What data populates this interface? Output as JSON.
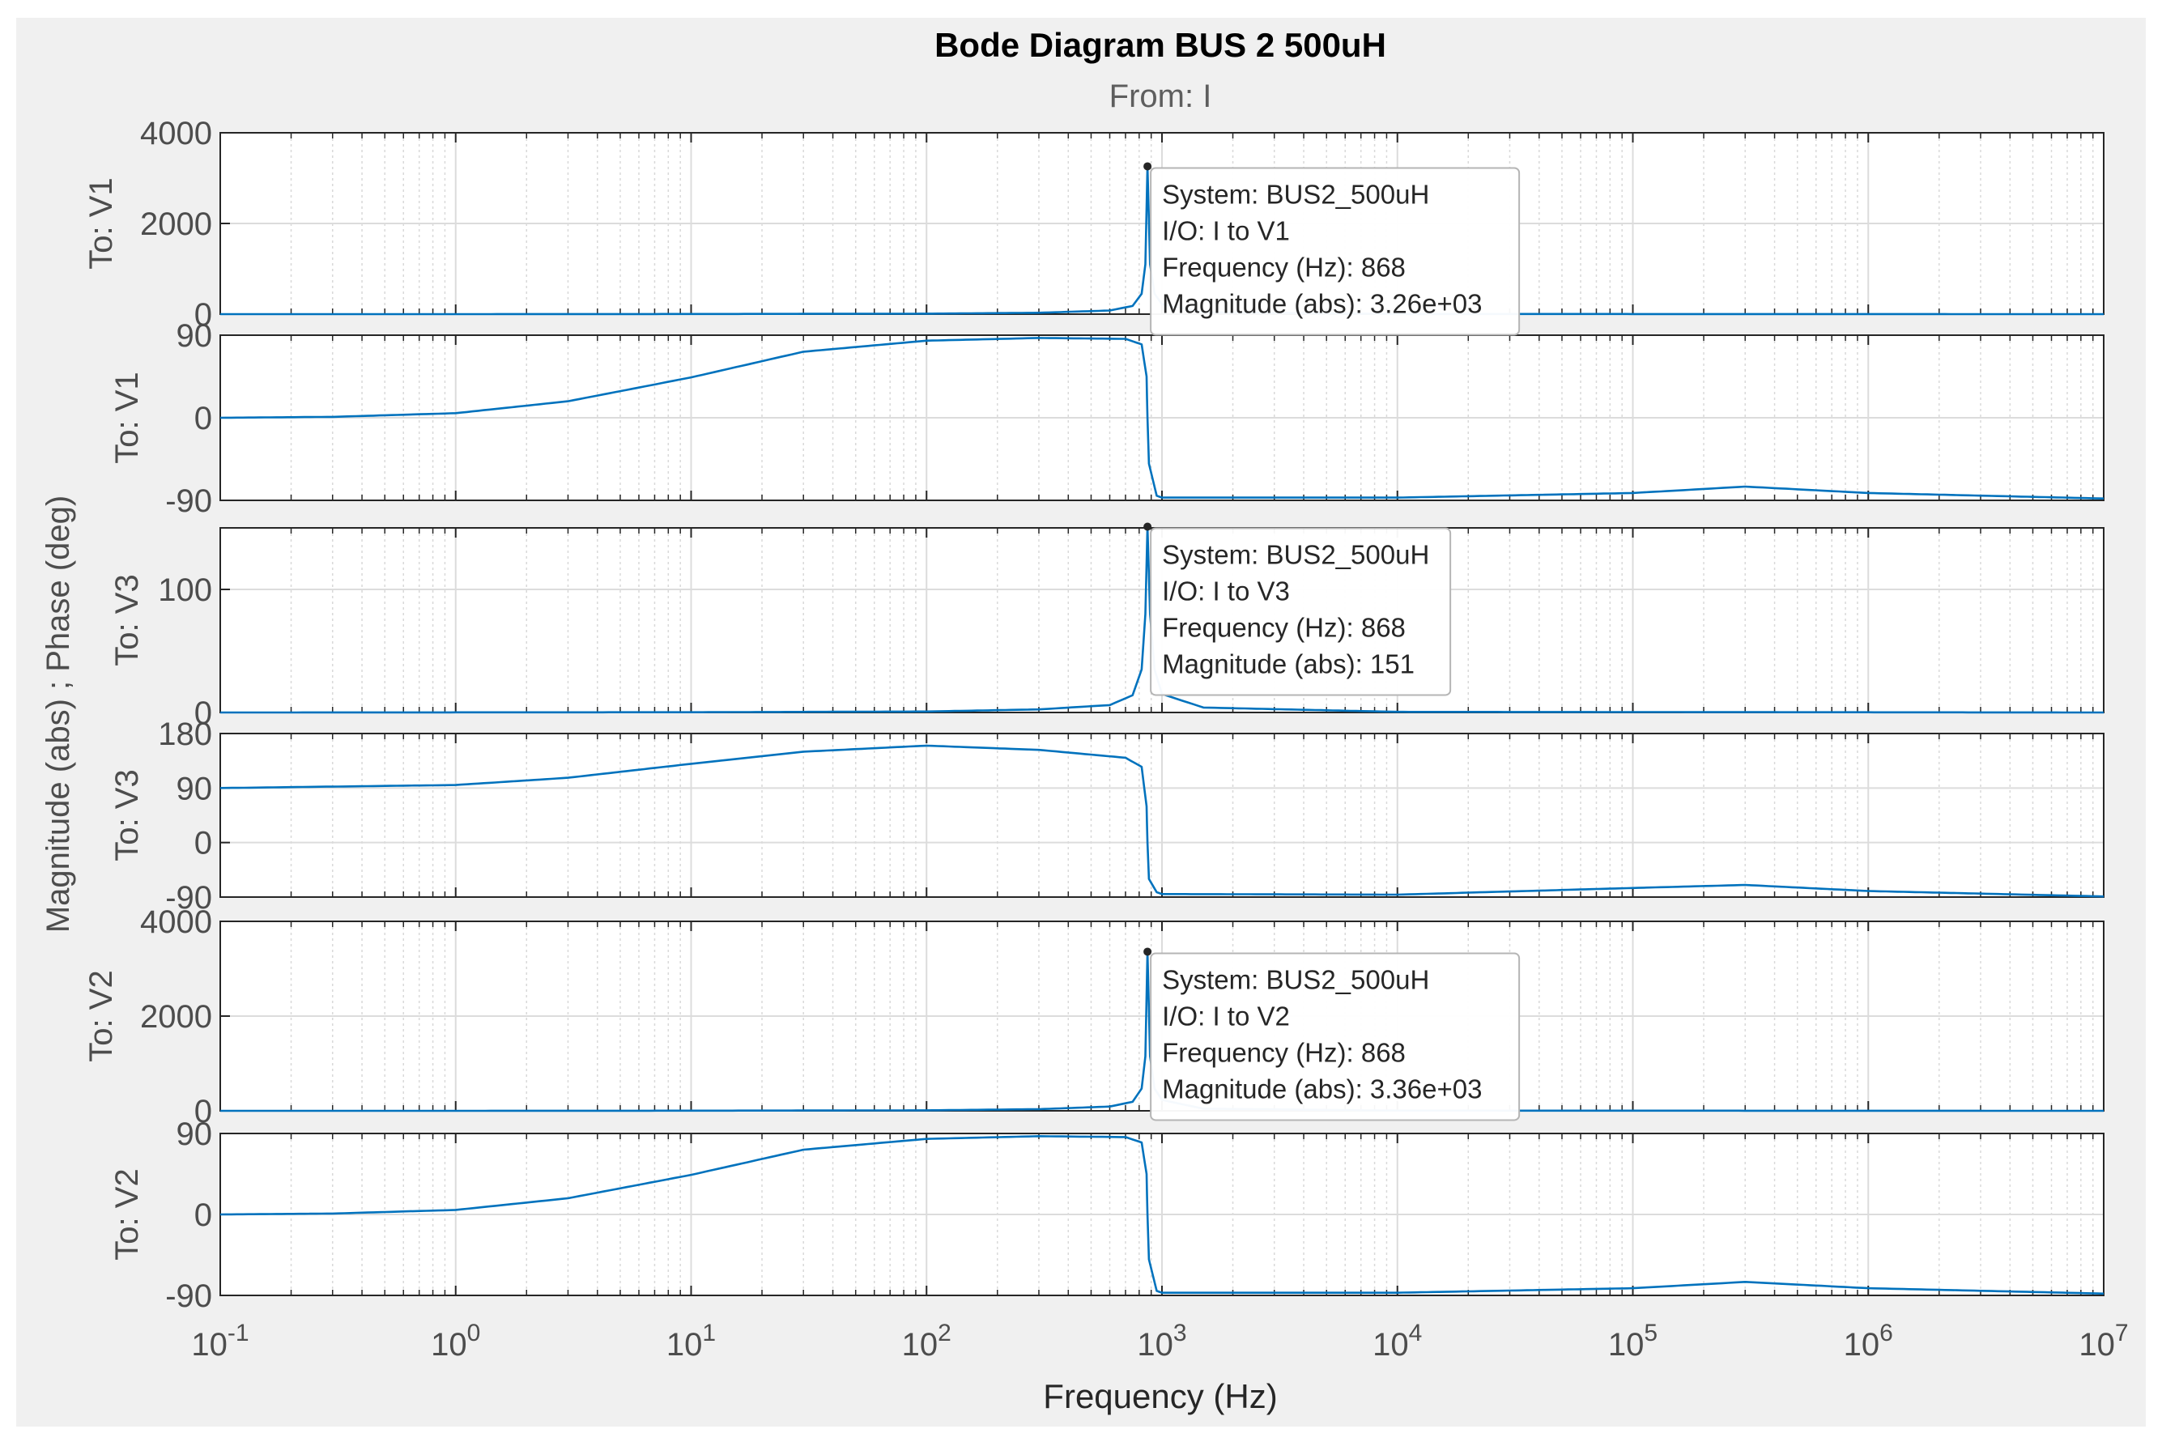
{
  "chart_data": {
    "type": "line",
    "title": "Bode Diagram BUS 2 500uH",
    "subtitle": "From: I",
    "xlabel": "Frequency  (Hz)",
    "ylabel": "Magnitude (abs) ; Phase (deg)",
    "xscale": "log",
    "xlim": [
      0.1,
      10000000
    ],
    "x_ticks": [
      {
        "base": "10",
        "exp": "-1"
      },
      {
        "base": "10",
        "exp": "0"
      },
      {
        "base": "10",
        "exp": "1"
      },
      {
        "base": "10",
        "exp": "2"
      },
      {
        "base": "10",
        "exp": "3"
      },
      {
        "base": "10",
        "exp": "4"
      },
      {
        "base": "10",
        "exp": "5"
      },
      {
        "base": "10",
        "exp": "6"
      },
      {
        "base": "10",
        "exp": "7"
      }
    ],
    "grid": true,
    "line_color": "#0072bd",
    "panels": [
      {
        "kind": "magnitude",
        "ylabel": "To: V1",
        "ylim": [
          0,
          4000
        ],
        "yticks": [
          "4000",
          "2000",
          "0"
        ],
        "series": {
          "x": [
            0.1,
            1,
            10,
            100,
            300,
            600,
            750,
            820,
            850,
            868,
            890,
            930,
            1000,
            1500,
            10000,
            10000000
          ],
          "y": [
            0,
            0.5,
            3,
            10,
            30,
            80,
            180,
            450,
            1100,
            3260,
            1100,
            450,
            220,
            40,
            4,
            0
          ]
        }
      },
      {
        "kind": "phase",
        "ylabel": "To: V1",
        "ylim": [
          -90,
          90
        ],
        "yticks": [
          "90",
          "0",
          "-90"
        ],
        "series": {
          "x": [
            0.1,
            0.3,
            1,
            3,
            10,
            30,
            100,
            300,
            700,
            820,
            860,
            868,
            880,
            950,
            1000,
            10000,
            100000,
            300000,
            1000000,
            10000000
          ],
          "y": [
            0,
            1,
            5,
            18,
            44,
            72,
            84,
            87,
            86,
            80,
            45,
            0,
            -50,
            -85,
            -87,
            -87,
            -82,
            -75,
            -82,
            -88
          ]
        }
      },
      {
        "kind": "magnitude",
        "ylabel": "To: V3",
        "ylim": [
          0,
          150
        ],
        "yticks": [
          "100",
          "0"
        ],
        "series": {
          "x": [
            0.1,
            10,
            100,
            300,
            600,
            750,
            820,
            850,
            868,
            890,
            930,
            1000,
            1500,
            10000,
            10000000
          ],
          "y": [
            0,
            0.2,
            0.8,
            2.5,
            6,
            14,
            35,
            80,
            151,
            80,
            35,
            15,
            4,
            0.5,
            0
          ]
        }
      },
      {
        "kind": "phase",
        "ylabel": "To: V3",
        "ylim": [
          -90,
          180
        ],
        "yticks": [
          "180",
          "90",
          "0",
          "-90"
        ],
        "series": {
          "x": [
            0.1,
            1,
            3,
            10,
            30,
            100,
            300,
            700,
            820,
            860,
            868,
            880,
            950,
            1000,
            10000,
            100000,
            300000,
            1000000,
            10000000
          ],
          "y": [
            90,
            95,
            107,
            130,
            150,
            160,
            153,
            140,
            125,
            60,
            0,
            -60,
            -82,
            -85,
            -86,
            -75,
            -70,
            -80,
            -89
          ]
        }
      },
      {
        "kind": "magnitude",
        "ylabel": "To: V2",
        "ylim": [
          0,
          4000
        ],
        "yticks": [
          "4000",
          "2000",
          "0"
        ],
        "series": {
          "x": [
            0.1,
            1,
            10,
            100,
            300,
            600,
            750,
            820,
            850,
            868,
            890,
            930,
            1000,
            1500,
            10000,
            10000000
          ],
          "y": [
            0,
            0.5,
            3,
            10,
            35,
            90,
            190,
            470,
            1150,
            3360,
            1150,
            470,
            230,
            45,
            5,
            0
          ]
        }
      },
      {
        "kind": "phase",
        "ylabel": "To: V2",
        "ylim": [
          -90,
          90
        ],
        "yticks": [
          "90",
          "0",
          "-90"
        ],
        "series": {
          "x": [
            0.1,
            0.3,
            1,
            3,
            10,
            30,
            100,
            300,
            700,
            820,
            860,
            868,
            880,
            950,
            1000,
            10000,
            100000,
            300000,
            1000000,
            10000000
          ],
          "y": [
            0,
            1,
            5,
            18,
            44,
            72,
            84,
            87,
            86,
            80,
            45,
            0,
            -50,
            -85,
            -87,
            -87,
            -82,
            -75,
            -82,
            -88
          ]
        }
      }
    ],
    "datatips": [
      {
        "panel": 0,
        "x": 868,
        "y": 3260,
        "lines": [
          "System: BUS2_500uH",
          "I/O: I to V1",
          "Frequency (Hz): 868",
          "Magnitude (abs): 3.26e+03"
        ]
      },
      {
        "panel": 2,
        "x": 868,
        "y": 151,
        "lines": [
          "System: BUS2_500uH",
          "I/O: I to V3",
          "Frequency (Hz): 868",
          "Magnitude (abs): 151"
        ]
      },
      {
        "panel": 4,
        "x": 868,
        "y": 3360,
        "lines": [
          "System: BUS2_500uH",
          "I/O: I to V2",
          "Frequency (Hz): 868",
          "Magnitude (abs): 3.36e+03"
        ]
      }
    ]
  }
}
